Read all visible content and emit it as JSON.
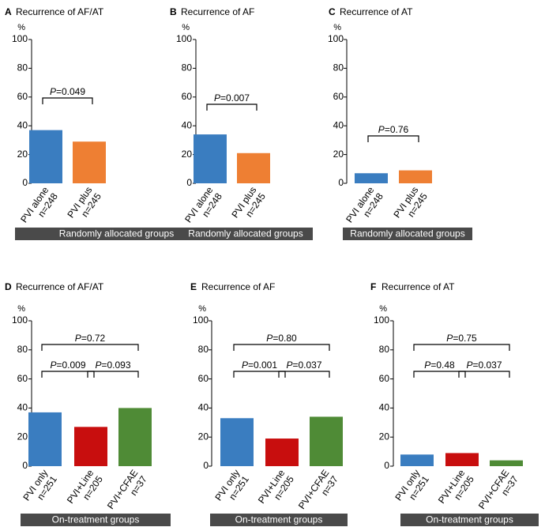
{
  "colors": {
    "blue": "#3A7DC0",
    "orange": "#EE7F33",
    "red": "#C80E0E",
    "green": "#4F8B36",
    "footer_bg": "#4a4a4a",
    "footer_text": "#ffffff"
  },
  "chart_data": [
    {
      "type": "bar",
      "panel": "A",
      "title": "Recurrence of AF/AT",
      "ylabel": "%",
      "ylim": [
        0,
        100
      ],
      "yticks": [
        0,
        20,
        40,
        60,
        80,
        100
      ],
      "categories": [
        [
          "PVI alone",
          "n=248"
        ],
        [
          "PVI plus",
          "n=245"
        ]
      ],
      "values": [
        37,
        29
      ],
      "colors": [
        "blue",
        "orange"
      ],
      "comparisons": [
        {
          "p_label": "P",
          "p_value": "=0.049",
          "from": 0,
          "to": 1,
          "level": 1
        }
      ],
      "group_label": "Randomly allocated groups"
    },
    {
      "type": "bar",
      "panel": "B",
      "title": "Recurrence of AF",
      "ylabel": "%",
      "ylim": [
        0,
        100
      ],
      "yticks": [
        0,
        20,
        40,
        60,
        80,
        100
      ],
      "categories": [
        [
          "PVI alone",
          "n=248"
        ],
        [
          "PVI plus",
          "n=245"
        ]
      ],
      "values": [
        34,
        21
      ],
      "colors": [
        "blue",
        "orange"
      ],
      "comparisons": [
        {
          "p_label": "P",
          "p_value": "=0.007",
          "from": 0,
          "to": 1,
          "level": 1
        }
      ],
      "group_label": "Randomly allocated groups"
    },
    {
      "type": "bar",
      "panel": "C",
      "title": "Recurrence of AT",
      "ylabel": "%",
      "ylim": [
        0,
        100
      ],
      "yticks": [
        0,
        20,
        40,
        60,
        80,
        100
      ],
      "categories": [
        [
          "PVI alone",
          "n=248"
        ],
        [
          "PVI plus",
          "n=245"
        ]
      ],
      "values": [
        7,
        9
      ],
      "colors": [
        "blue",
        "orange"
      ],
      "comparisons": [
        {
          "p_label": "P",
          "p_value": "=0.76",
          "from": 0,
          "to": 1,
          "level": 1
        }
      ],
      "group_label": "Randomly allocated groups"
    },
    {
      "type": "bar",
      "panel": "D",
      "title": "Recurrence of AF/AT",
      "ylabel": "%",
      "ylim": [
        0,
        100
      ],
      "yticks": [
        0,
        20,
        40,
        60,
        80,
        100
      ],
      "categories": [
        [
          "PVI only",
          "n=251"
        ],
        [
          "PVI+Line",
          "n=205"
        ],
        [
          "PVI+CFAE",
          "n=37"
        ]
      ],
      "values": [
        37,
        27,
        40
      ],
      "colors": [
        "blue",
        "red",
        "green"
      ],
      "comparisons": [
        {
          "p_label": "P",
          "p_value": "=0.009",
          "from": 0,
          "to": 1,
          "level": 1
        },
        {
          "p_label": "P",
          "p_value": "=0.093",
          "from": 1,
          "to": 2,
          "level": 1
        },
        {
          "p_label": "P",
          "p_value": "=0.72",
          "from": 0,
          "to": 2,
          "level": 2
        }
      ],
      "group_label": "On-treatment groups"
    },
    {
      "type": "bar",
      "panel": "E",
      "title": "Recurrence of AF",
      "ylabel": "%",
      "ylim": [
        0,
        100
      ],
      "yticks": [
        0,
        20,
        40,
        60,
        80,
        100
      ],
      "categories": [
        [
          "PVI only",
          "n=251"
        ],
        [
          "PVI+Line",
          "n=205"
        ],
        [
          "PVI+CFAE",
          "n=37"
        ]
      ],
      "values": [
        33,
        19,
        34
      ],
      "colors": [
        "blue",
        "red",
        "green"
      ],
      "comparisons": [
        {
          "p_label": "P",
          "p_value": "=0.001",
          "from": 0,
          "to": 1,
          "level": 1
        },
        {
          "p_label": "P",
          "p_value": "=0.037",
          "from": 1,
          "to": 2,
          "level": 1
        },
        {
          "p_label": "P",
          "p_value": "=0.80",
          "from": 0,
          "to": 2,
          "level": 2
        }
      ],
      "group_label": "On-treatment groups"
    },
    {
      "type": "bar",
      "panel": "F",
      "title": "Recurrence of AT",
      "ylabel": "%",
      "ylim": [
        0,
        100
      ],
      "yticks": [
        0,
        20,
        40,
        60,
        80,
        100
      ],
      "categories": [
        [
          "PVI only",
          "n=251"
        ],
        [
          "PVI+Line",
          "n=205"
        ],
        [
          "PVI+CFAE",
          "n=37"
        ]
      ],
      "values": [
        8,
        9,
        4
      ],
      "colors": [
        "blue",
        "red",
        "green"
      ],
      "comparisons": [
        {
          "p_label": "P",
          "p_value": "=0.48",
          "from": 0,
          "to": 1,
          "level": 1
        },
        {
          "p_label": "P",
          "p_value": "=0.037",
          "from": 1,
          "to": 2,
          "level": 1
        },
        {
          "p_label": "P",
          "p_value": "=0.75",
          "from": 0,
          "to": 2,
          "level": 2
        }
      ],
      "group_label": "On-treatment groups"
    }
  ]
}
